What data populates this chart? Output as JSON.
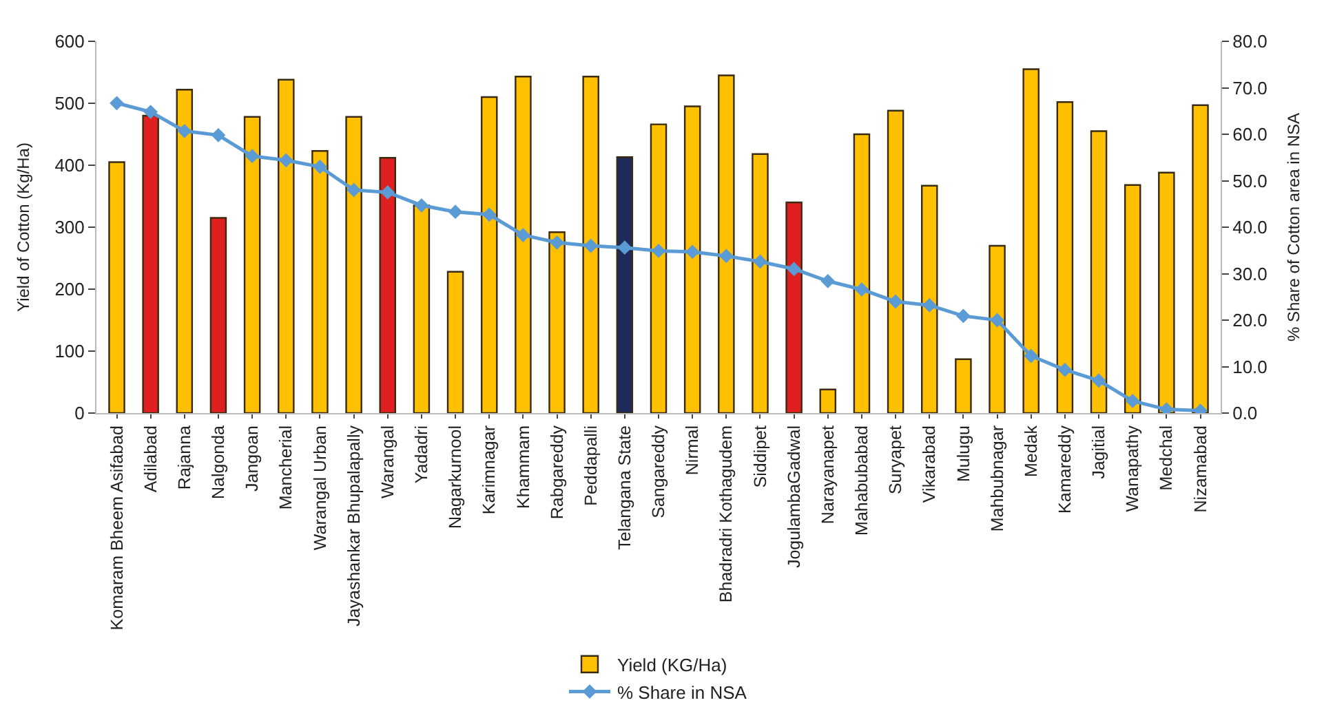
{
  "chart_data": {
    "type": "bar",
    "categories": [
      "Komaram Bheem Asifabad",
      "Adilabad",
      "Rajanna",
      "Nalgonda",
      "Jangoan",
      "Mancherial",
      "Warangal Urban",
      "Jayashankar Bhupalapally",
      "Warangal",
      "Yadadri",
      "Nagarkurnool",
      "Karimnagar",
      "Khammam",
      "Rabgareddy",
      "Peddapalli",
      "Telangana State",
      "Sangareddy",
      "Nirmal",
      "Bhadradri Kothagudem",
      "Siddipet",
      "JogulambaGadwal",
      "Narayanapet",
      "Mahabubabad",
      "Suryapet",
      "Vikarabad",
      "Mulugu",
      "Mahbubnagar",
      "Medak",
      "Kamareddy",
      "Jagitial",
      "Wanapathy",
      "Medchal",
      "Nizamabad"
    ],
    "series": [
      {
        "name": "Yield (KG/Ha)",
        "colors": [
          "#ffc000",
          "#e02020",
          "#ffc000",
          "#e02020",
          "#ffc000",
          "#ffc000",
          "#ffc000",
          "#ffc000",
          "#e02020",
          "#ffc000",
          "#ffc000",
          "#ffc000",
          "#ffc000",
          "#ffc000",
          "#ffc000",
          "#1f2a5c",
          "#ffc000",
          "#ffc000",
          "#ffc000",
          "#ffc000",
          "#e02020",
          "#ffc000",
          "#ffc000",
          "#ffc000",
          "#ffc000",
          "#ffc000",
          "#ffc000",
          "#ffc000",
          "#ffc000",
          "#ffc000",
          "#ffc000",
          "#ffc000",
          "#ffc000"
        ],
        "values": [
          405,
          480,
          522,
          315,
          478,
          538,
          423,
          478,
          412,
          335,
          228,
          510,
          543,
          292,
          543,
          413,
          466,
          495,
          545,
          418,
          340,
          38,
          450,
          488,
          367,
          87,
          270,
          555,
          502,
          455,
          368,
          388,
          497
        ]
      },
      {
        "name": "% Share in NSA",
        "type": "line",
        "axis": "y2",
        "color": "#5b9bd5",
        "values": [
          66.7,
          64.8,
          60.7,
          59.8,
          55.3,
          54.4,
          53.0,
          48.0,
          47.5,
          44.7,
          43.3,
          42.7,
          38.3,
          36.7,
          36.0,
          35.6,
          34.9,
          34.7,
          33.8,
          32.6,
          31.0,
          28.4,
          26.6,
          24.0,
          23.2,
          20.9,
          20.0,
          12.3,
          9.3,
          7.0,
          2.6,
          0.8,
          0.5
        ]
      }
    ],
    "ylabel": "Yield of Cotton (Kg/Ha)",
    "y2label": "% Share of Cotton area in NSA",
    "ylim": [
      0,
      600
    ],
    "yticks": [
      0,
      100,
      200,
      300,
      400,
      500,
      600
    ],
    "y2lim": [
      0,
      80
    ],
    "y2ticks": [
      {
        "value": 0,
        "label": "0.0"
      },
      {
        "value": 10,
        "label": "10.0"
      },
      {
        "value": 20,
        "label": "20.0"
      },
      {
        "value": 30,
        "label": "30.0"
      },
      {
        "value": 40,
        "label": "40.0"
      },
      {
        "value": 50,
        "label": "50.0"
      },
      {
        "value": 60,
        "label": "60.0"
      },
      {
        "value": 70,
        "label": "70.0"
      },
      {
        "value": 80,
        "label": "80.0"
      }
    ],
    "marker": "diamond",
    "line_style": "solid",
    "legend": "bottom"
  }
}
